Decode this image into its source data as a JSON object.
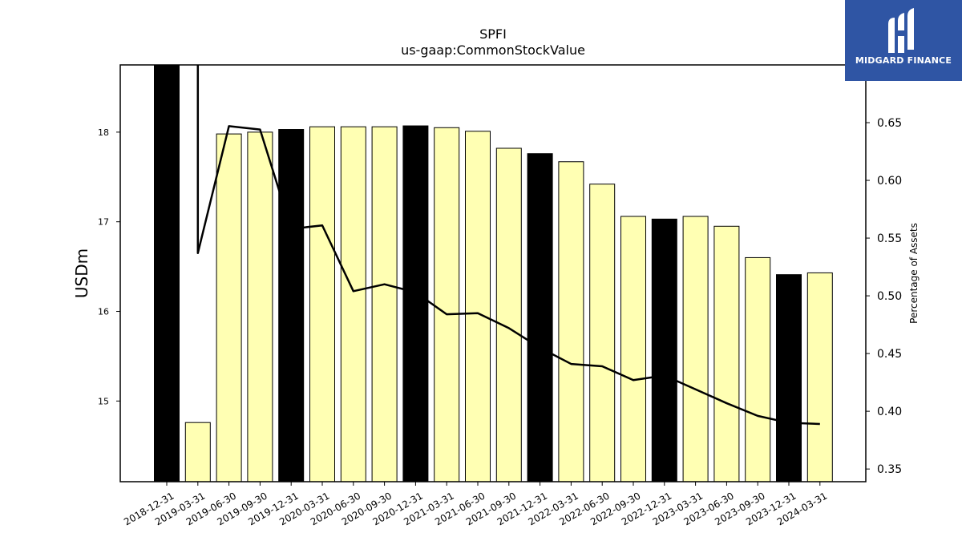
{
  "colors": {
    "bar_q4": "#000000",
    "bar_other": "#ffffb3",
    "line": "#000000",
    "logo_bg": "#2f55a4"
  },
  "logo": {
    "text": "MIDGARD FINANCE",
    "icon": "midgard-m-logo-icon"
  },
  "chart_data": {
    "type": "bar",
    "title": "SPFI",
    "subtitle": "us-gaap:CommonStockValue",
    "ylabel": "USDm",
    "y2label": "Percentage of Assets",
    "ylim": [
      14.1,
      18.75
    ],
    "y2lim": [
      0.339,
      0.7
    ],
    "yticks": [
      15,
      16,
      17,
      18
    ],
    "y2ticks": [
      0.35,
      0.4,
      0.45,
      0.5,
      0.55,
      0.6,
      0.65
    ],
    "y2tick_labels": [
      "0.35",
      "0.40",
      "0.45",
      "0.50",
      "0.55",
      "0.60",
      "0.65"
    ],
    "categories": [
      "2018-12-31",
      "2019-03-31",
      "2019-06-30",
      "2019-09-30",
      "2019-12-31",
      "2020-03-31",
      "2020-06-30",
      "2020-09-30",
      "2020-12-31",
      "2021-03-31",
      "2021-06-30",
      "2021-09-30",
      "2021-12-31",
      "2022-03-31",
      "2022-06-30",
      "2022-09-30",
      "2022-12-31",
      "2023-03-31",
      "2023-06-30",
      "2023-09-30",
      "2023-12-31",
      "2024-03-31"
    ],
    "series": [
      {
        "kind": "bar",
        "values": [
          18.9,
          14.76,
          17.98,
          18.0,
          18.03,
          18.06,
          18.06,
          18.06,
          18.07,
          18.05,
          18.01,
          17.82,
          17.76,
          17.67,
          17.42,
          17.06,
          17.03,
          17.06,
          16.95,
          16.6,
          16.41,
          16.43
        ],
        "highlight_q4": [
          true,
          false,
          false,
          false,
          true,
          false,
          false,
          false,
          true,
          false,
          false,
          false,
          true,
          false,
          false,
          false,
          true,
          false,
          false,
          false,
          true,
          false
        ]
      },
      {
        "kind": "line",
        "axis": "right",
        "values": [
          null,
          0.537,
          0.647,
          0.644,
          0.558,
          0.561,
          0.504,
          0.51,
          0.503,
          0.484,
          0.485,
          0.472,
          0.455,
          0.441,
          0.439,
          0.427,
          0.431,
          0.419,
          0.407,
          0.396,
          0.39,
          0.389
        ],
        "spike_from_top_at_index": 1
      }
    ],
    "grid": false,
    "legend": "none"
  }
}
